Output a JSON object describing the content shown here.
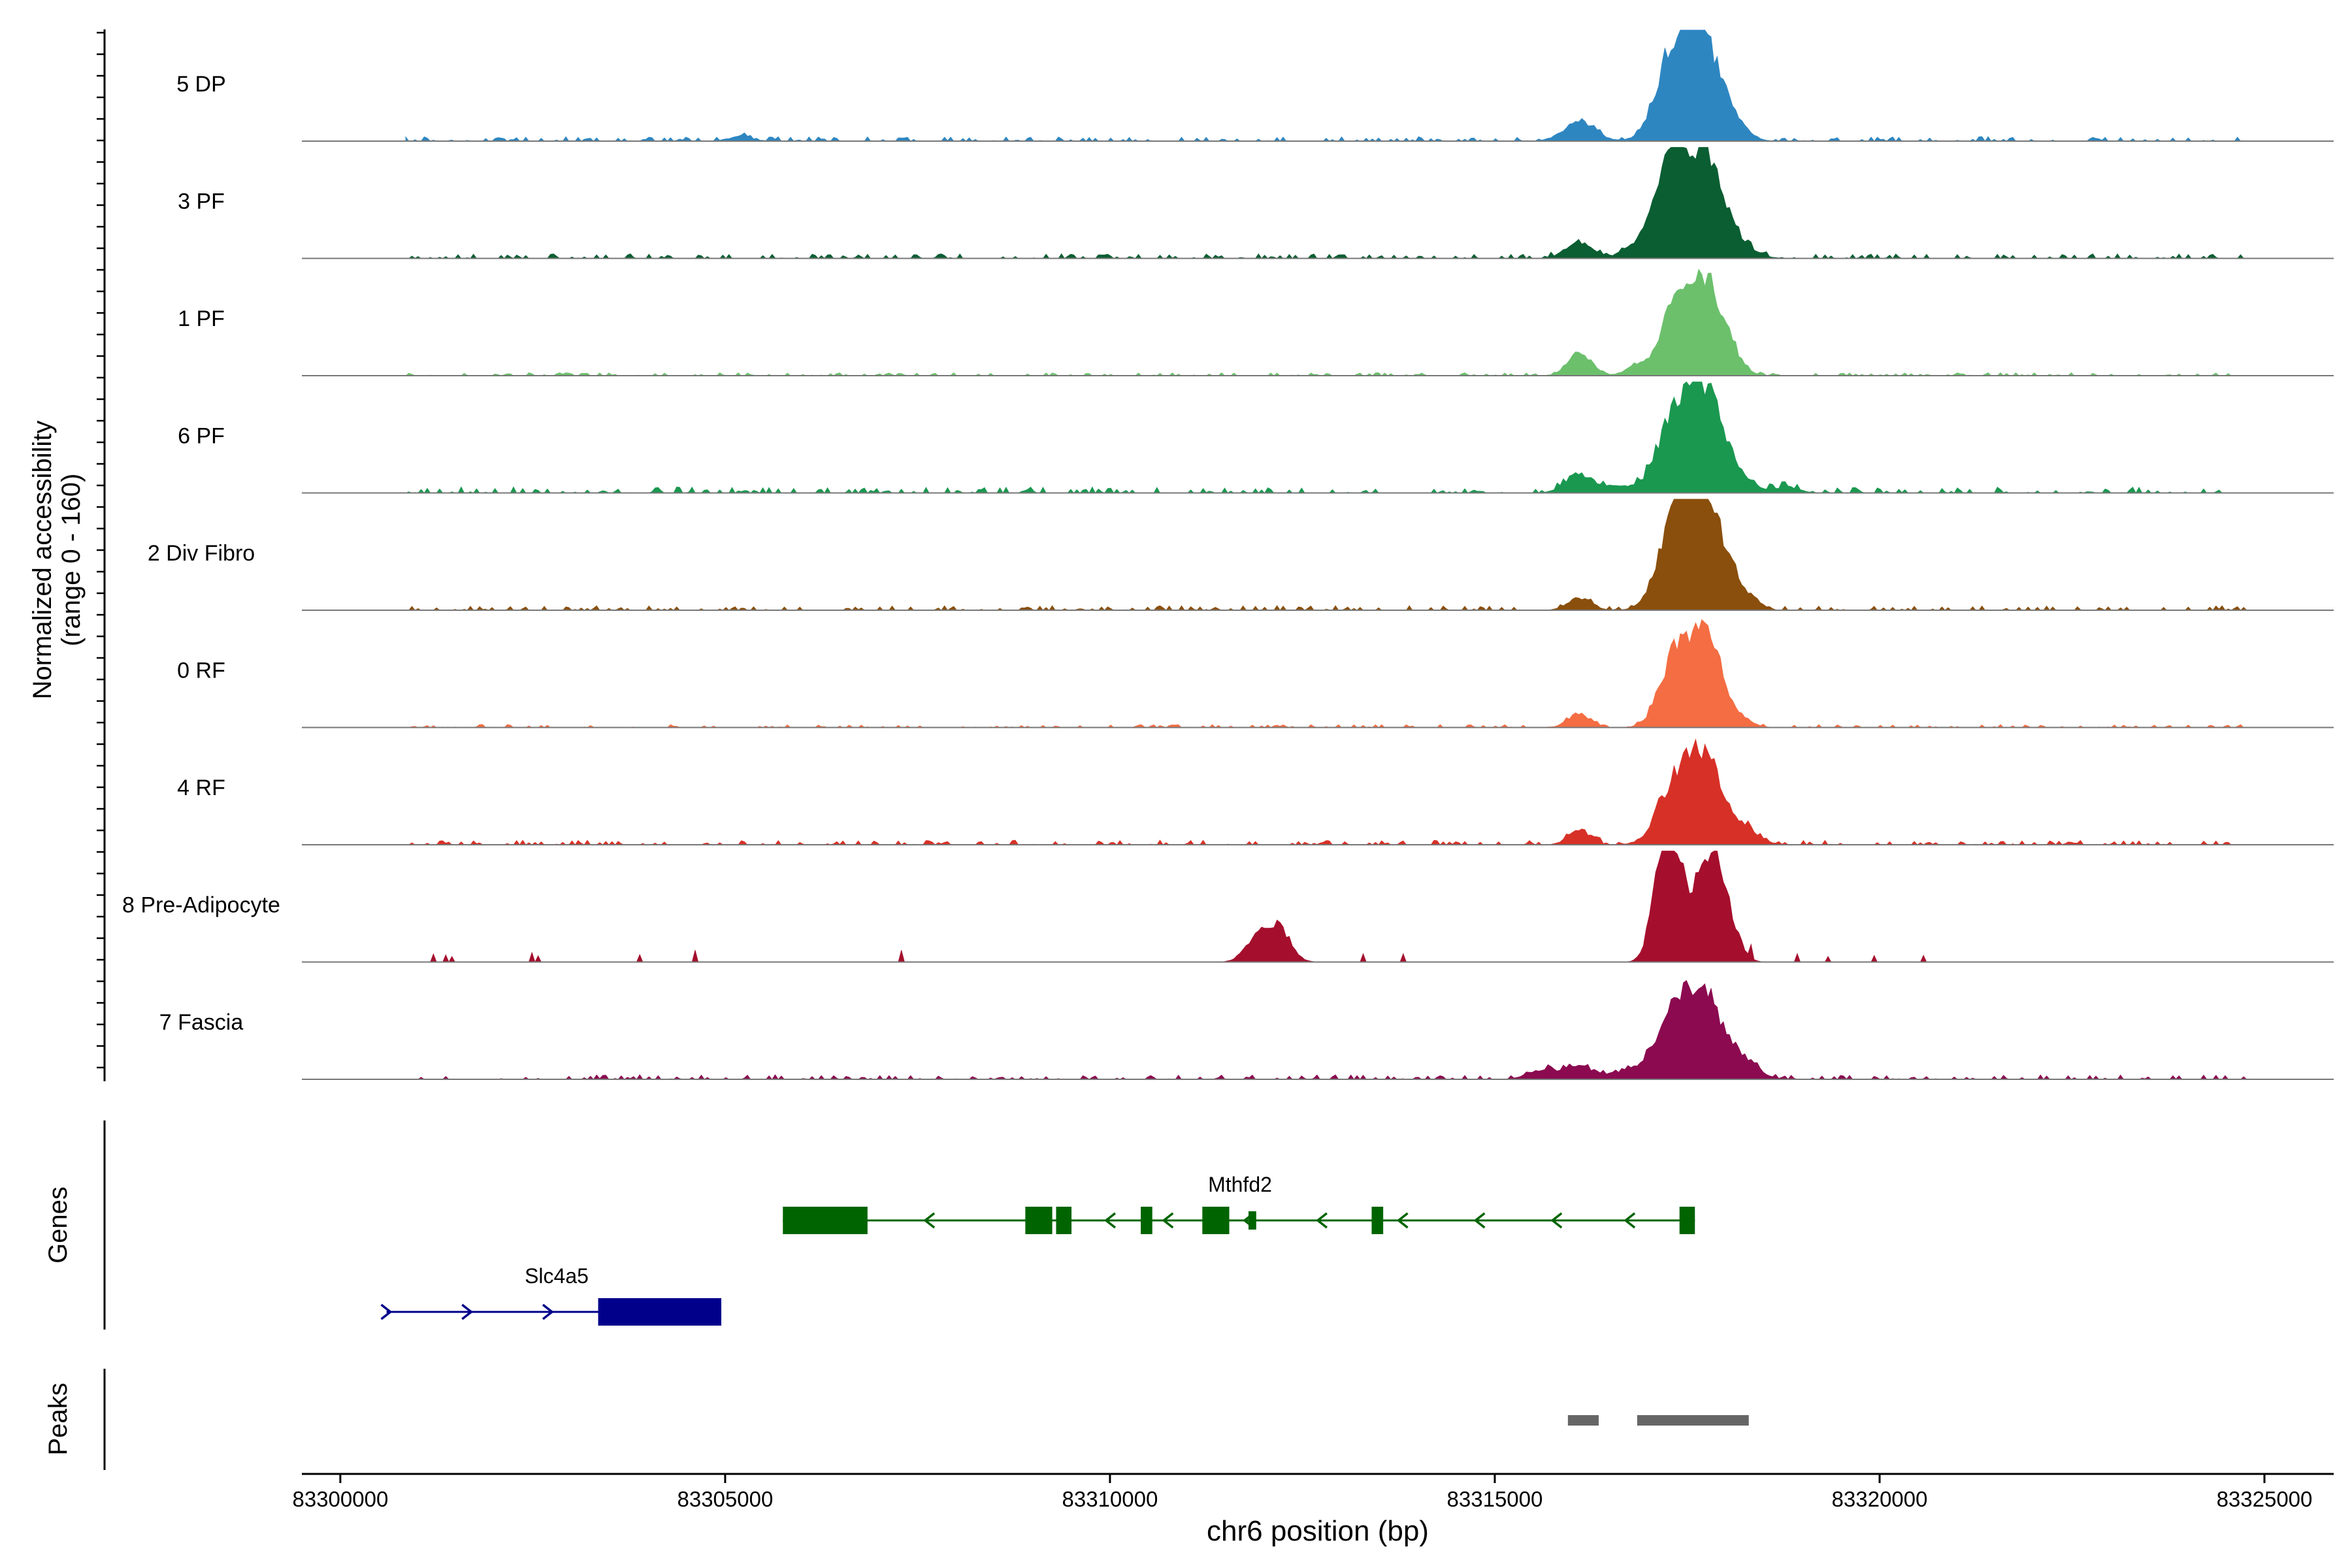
{
  "chart_data": {
    "type": "area",
    "title": "",
    "xlabel": "chr6 position (bp)",
    "ylabel": "Normalized accessibility",
    "ylabel_range": "(range 0 - 160)",
    "ylim": [
      0,
      160
    ],
    "xlim": [
      83299500,
      83325900
    ],
    "x_ticks": [
      83300000,
      83305000,
      83310000,
      83315000,
      83320000,
      83325000
    ],
    "x_tick_labels": [
      "83300000",
      "83305000",
      "83310000",
      "83315000",
      "83320000",
      "83325000"
    ],
    "track_labels": {
      "genes": "Genes",
      "peaks": "Peaks"
    },
    "tracks": [
      {
        "name": "5 DP",
        "color": "#2e86c1",
        "peaks": [
          [
            83316100,
            13,
            200
          ],
          [
            83317350,
            60,
            230
          ],
          [
            83317750,
            56,
            230
          ],
          [
            83318200,
            5,
            150
          ],
          [
            83305200,
            3,
            150
          ]
        ],
        "noise_seed": 3,
        "noise_level": 3
      },
      {
        "name": "3 PF",
        "color": "#0a5e32",
        "peaks": [
          [
            83316100,
            10,
            180
          ],
          [
            83317100,
            20,
            250
          ],
          [
            83317350,
            55,
            190
          ],
          [
            83317750,
            60,
            200
          ],
          [
            83318100,
            12,
            220
          ]
        ],
        "noise_seed": 7,
        "noise_level": 3
      },
      {
        "name": "1 PF",
        "color": "#6cc06c",
        "peaks": [
          [
            83316100,
            16,
            150
          ],
          [
            83316850,
            6,
            150
          ],
          [
            83317350,
            40,
            200
          ],
          [
            83317750,
            58,
            220
          ],
          [
            83318100,
            5,
            150
          ]
        ],
        "noise_seed": 11,
        "noise_level": 2
      },
      {
        "name": "6 PF",
        "color": "#1a9850",
        "peaks": [
          [
            83316100,
            12,
            180
          ],
          [
            83316600,
            4,
            200
          ],
          [
            83317350,
            48,
            230
          ],
          [
            83317750,
            60,
            220
          ],
          [
            83318200,
            8,
            180
          ],
          [
            83318800,
            4,
            150
          ]
        ],
        "noise_seed": 19,
        "noise_level": 4
      },
      {
        "name": "2 Div Fibro",
        "color": "#8a4f0c",
        "peaks": [
          [
            83316100,
            8,
            150
          ],
          [
            83317350,
            56,
            220
          ],
          [
            83317750,
            68,
            230
          ],
          [
            83318200,
            10,
            170
          ]
        ],
        "noise_seed": 23,
        "noise_level": 3
      },
      {
        "name": "0 RF",
        "color": "#f46d43",
        "peaks": [
          [
            83316100,
            9,
            140
          ],
          [
            83317350,
            46,
            200
          ],
          [
            83317750,
            58,
            200
          ],
          [
            83318200,
            5,
            150
          ]
        ],
        "noise_seed": 29,
        "noise_level": 2
      },
      {
        "name": "4 RF",
        "color": "#d73027",
        "peaks": [
          [
            83316100,
            10,
            140
          ],
          [
            83317350,
            42,
            220
          ],
          [
            83317750,
            50,
            200
          ],
          [
            83318200,
            12,
            200
          ]
        ],
        "noise_seed": 31,
        "noise_level": 3
      },
      {
        "name": "8 Pre-Adipocyte",
        "color": "#a50f2d",
        "peaks": [
          [
            83311900,
            15,
            150
          ],
          [
            83312200,
            22,
            150
          ],
          [
            83317150,
            50,
            130
          ],
          [
            83317350,
            64,
            130
          ],
          [
            83317750,
            64,
            150
          ],
          [
            83318000,
            32,
            150
          ]
        ],
        "noise_seed": 37,
        "noise_level": 6,
        "sparse": true
      },
      {
        "name": "7 Fascia",
        "color": "#8b0a50",
        "peaks": [
          [
            83315600,
            6,
            180
          ],
          [
            83316100,
            8,
            200
          ],
          [
            83316800,
            6,
            250
          ],
          [
            83317350,
            46,
            220
          ],
          [
            83317750,
            50,
            200
          ],
          [
            83318200,
            14,
            200
          ]
        ],
        "noise_seed": 41,
        "noise_level": 3
      }
    ],
    "genes": [
      {
        "name": "Mthfd2",
        "strand": "-",
        "color": "#006400",
        "start": 83305750,
        "end": 83317600,
        "exons": [
          [
            83305750,
            83306850
          ],
          [
            83308900,
            83309250
          ],
          [
            83309300,
            83309500
          ],
          [
            83310400,
            83310550
          ],
          [
            83311200,
            83311550
          ],
          [
            83311800,
            83311900
          ],
          [
            83313400,
            83313550
          ],
          [
            83317400,
            83317600
          ]
        ],
        "thick_exons": [
          [
            83305750,
            83306850
          ],
          [
            83308900,
            83309250
          ],
          [
            83309300,
            83309500
          ],
          [
            83310400,
            83310550
          ],
          [
            83311200,
            83311550
          ],
          [
            83313400,
            83313550
          ],
          [
            83317400,
            83317600
          ]
        ],
        "arrows": [
          83307650,
          83310000,
          83310750,
          83311800,
          83312750,
          83313800,
          83314800,
          83315800,
          83316750
        ]
      },
      {
        "name": "Slc4a5",
        "strand": "+",
        "color": "#00008b",
        "start": 83300600,
        "end": 83304950,
        "exons": [
          [
            83303350,
            83304950
          ]
        ],
        "thick_exons": [
          [
            83303350,
            83304950
          ]
        ],
        "arrows": [
          83300600,
          83301650,
          83302700
        ]
      }
    ],
    "peak_regions": [
      [
        83315950,
        83316350
      ],
      [
        83316850,
        83318300
      ]
    ]
  }
}
